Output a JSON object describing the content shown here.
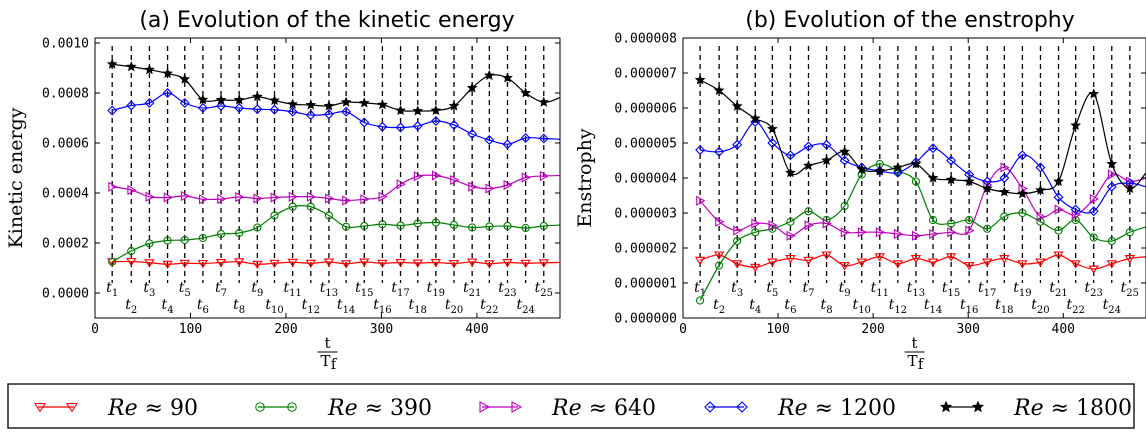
{
  "chart_data": [
    {
      "type": "line",
      "title": "(a) Evolution of the kinetic energy",
      "ylabel": "Kinetic energy",
      "xlabel": {
        "num": "t",
        "den": "T",
        "den_sub": "f"
      },
      "xlim": [
        0,
        487
      ],
      "ylim": [
        -0.0001,
        0.00102
      ],
      "xticks": [
        0,
        100,
        200,
        300,
        400
      ],
      "xtick_labels": [
        "0",
        "100",
        "200",
        "300",
        "400"
      ],
      "yticks": [
        0.0,
        0.0002,
        0.0004,
        0.0006,
        0.0008,
        0.001
      ],
      "ytick_labels": [
        "0.0000",
        "0.0002",
        "0.0004",
        "0.0006",
        "0.0008",
        "0.0010"
      ],
      "grid": false,
      "t_markers": [
        {
          "base": "t",
          "sub": "1",
          "x": 18
        },
        {
          "base": "t",
          "sub": "2",
          "x": 38
        },
        {
          "base": "t",
          "sub": "3",
          "x": 57
        },
        {
          "base": "t",
          "sub": "4",
          "x": 76
        },
        {
          "base": "t",
          "sub": "5",
          "x": 94
        },
        {
          "base": "t",
          "sub": "6",
          "x": 113
        },
        {
          "base": "t",
          "sub": "7",
          "x": 132
        },
        {
          "base": "t",
          "sub": "8",
          "x": 151
        },
        {
          "base": "t",
          "sub": "9",
          "x": 170
        },
        {
          "base": "t",
          "sub": "10",
          "x": 188
        },
        {
          "base": "t",
          "sub": "11",
          "x": 207
        },
        {
          "base": "t",
          "sub": "12",
          "x": 226
        },
        {
          "base": "t",
          "sub": "13",
          "x": 245
        },
        {
          "base": "t",
          "sub": "14",
          "x": 263
        },
        {
          "base": "t",
          "sub": "15",
          "x": 282
        },
        {
          "base": "t",
          "sub": "16",
          "x": 301
        },
        {
          "base": "t",
          "sub": "17",
          "x": 320
        },
        {
          "base": "t",
          "sub": "18",
          "x": 338
        },
        {
          "base": "t",
          "sub": "19",
          "x": 357
        },
        {
          "base": "t",
          "sub": "20",
          "x": 376
        },
        {
          "base": "t",
          "sub": "21",
          "x": 395
        },
        {
          "base": "t",
          "sub": "22",
          "x": 413
        },
        {
          "base": "t",
          "sub": "23",
          "x": 432
        },
        {
          "base": "t",
          "sub": "24",
          "x": 451
        },
        {
          "base": "t",
          "sub": "25",
          "x": 470
        }
      ],
      "x": [
        18,
        38,
        57,
        76,
        94,
        113,
        132,
        151,
        170,
        188,
        207,
        226,
        245,
        263,
        282,
        301,
        320,
        338,
        357,
        376,
        395,
        413,
        432,
        451,
        470,
        487
      ],
      "series": [
        {
          "name": "Re ≈ 90",
          "color": "#ff0000",
          "marker": "triangle-down",
          "values": [
            0.000125,
            0.000126,
            0.000121,
            0.000115,
            0.000119,
            0.000118,
            0.000122,
            0.000125,
            0.000115,
            0.000119,
            0.000123,
            0.000119,
            0.000124,
            0.000117,
            0.000124,
            0.000119,
            0.000122,
            0.00012,
            0.000122,
            0.000118,
            0.000124,
            0.000117,
            0.000122,
            0.000119,
            0.000121,
            0.000122
          ]
        },
        {
          "name": "Re ≈ 390",
          "color": "#008000",
          "marker": "circle",
          "values": [
            0.000125,
            0.000168,
            0.000198,
            0.00021,
            0.000212,
            0.00022,
            0.000236,
            0.00024,
            0.000262,
            0.00031,
            0.000345,
            0.000345,
            0.00031,
            0.000265,
            0.000268,
            0.000275,
            0.00027,
            0.000278,
            0.000282,
            0.000272,
            0.000262,
            0.000266,
            0.000268,
            0.00026,
            0.000268,
            0.000272
          ]
        },
        {
          "name": "Re ≈ 640",
          "color": "#bf00bf",
          "marker": "triangle-right",
          "values": [
            0.000425,
            0.000412,
            0.000385,
            0.000382,
            0.000388,
            0.000375,
            0.000376,
            0.000384,
            0.000378,
            0.000382,
            0.000385,
            0.000385,
            0.000378,
            0.00037,
            0.000375,
            0.000385,
            0.000435,
            0.000467,
            0.00047,
            0.000452,
            0.000425,
            0.000418,
            0.000432,
            0.000462,
            0.000468,
            0.00047
          ]
        },
        {
          "name": "Re ≈ 1200",
          "color": "#0000ff",
          "marker": "diamond",
          "values": [
            0.00073,
            0.00075,
            0.00076,
            0.0008,
            0.00076,
            0.00074,
            0.000748,
            0.00074,
            0.000735,
            0.000733,
            0.000725,
            0.000712,
            0.000715,
            0.000725,
            0.000682,
            0.000665,
            0.000662,
            0.000668,
            0.000688,
            0.000672,
            0.000636,
            0.000612,
            0.000595,
            0.00062,
            0.000618,
            0.000615
          ]
        },
        {
          "name": "Re ≈ 1800",
          "color": "#000000",
          "marker": "star",
          "values": [
            0.000915,
            0.000905,
            0.000893,
            0.000878,
            0.000855,
            0.000773,
            0.000772,
            0.000772,
            0.000785,
            0.00077,
            0.000755,
            0.000752,
            0.000748,
            0.000763,
            0.00076,
            0.000753,
            0.00073,
            0.000728,
            0.00073,
            0.000748,
            0.00082,
            0.00087,
            0.00086,
            0.0008,
            0.000763,
            0.000782
          ]
        }
      ]
    },
    {
      "type": "line",
      "title": "(b) Evolution of the enstrophy",
      "ylabel": "Enstrophy",
      "xlabel": {
        "num": "t",
        "den": "T",
        "den_sub": "f"
      },
      "xlim": [
        0,
        487
      ],
      "ylim": [
        0,
        8e-06
      ],
      "xticks": [
        0,
        100,
        200,
        300,
        400
      ],
      "xtick_labels": [
        "0",
        "100",
        "200",
        "300",
        "400"
      ],
      "yticks": [
        0.0,
        1e-06,
        2e-06,
        3e-06,
        4e-06,
        5e-06,
        6e-06,
        7e-06,
        8e-06
      ],
      "ytick_labels": [
        "0.000000",
        "0.000001",
        "0.000002",
        "0.000003",
        "0.000004",
        "0.000005",
        "0.000006",
        "0.000007",
        "0.000008"
      ],
      "grid": false,
      "t_markers": [
        {
          "base": "t",
          "sub": "1",
          "x": 18
        },
        {
          "base": "t",
          "sub": "2",
          "x": 38
        },
        {
          "base": "t",
          "sub": "3",
          "x": 57
        },
        {
          "base": "t",
          "sub": "4",
          "x": 76
        },
        {
          "base": "t",
          "sub": "5",
          "x": 94
        },
        {
          "base": "t",
          "sub": "6",
          "x": 113
        },
        {
          "base": "t",
          "sub": "7",
          "x": 132
        },
        {
          "base": "t",
          "sub": "8",
          "x": 151
        },
        {
          "base": "t",
          "sub": "9",
          "x": 170
        },
        {
          "base": "t",
          "sub": "10",
          "x": 188
        },
        {
          "base": "t",
          "sub": "11",
          "x": 207
        },
        {
          "base": "t",
          "sub": "12",
          "x": 226
        },
        {
          "base": "t",
          "sub": "13",
          "x": 245
        },
        {
          "base": "t",
          "sub": "14",
          "x": 263
        },
        {
          "base": "t",
          "sub": "15",
          "x": 282
        },
        {
          "base": "t",
          "sub": "16",
          "x": 301
        },
        {
          "base": "t",
          "sub": "17",
          "x": 320
        },
        {
          "base": "t",
          "sub": "18",
          "x": 338
        },
        {
          "base": "t",
          "sub": "19",
          "x": 357
        },
        {
          "base": "t",
          "sub": "20",
          "x": 376
        },
        {
          "base": "t",
          "sub": "21",
          "x": 395
        },
        {
          "base": "t",
          "sub": "22",
          "x": 413
        },
        {
          "base": "t",
          "sub": "23",
          "x": 432
        },
        {
          "base": "t",
          "sub": "24",
          "x": 451
        },
        {
          "base": "t",
          "sub": "25",
          "x": 470
        }
      ],
      "x": [
        18,
        38,
        57,
        76,
        94,
        113,
        132,
        151,
        170,
        188,
        207,
        226,
        245,
        263,
        282,
        301,
        320,
        338,
        357,
        376,
        395,
        413,
        432,
        451,
        470,
        487
      ],
      "series": [
        {
          "name": "Re ≈ 90",
          "color": "#ff0000",
          "marker": "triangle-down",
          "values": [
            1.65e-06,
            1.8e-06,
            1.55e-06,
            1.45e-06,
            1.6e-06,
            1.7e-06,
            1.65e-06,
            1.8e-06,
            1.5e-06,
            1.6e-06,
            1.75e-06,
            1.55e-06,
            1.7e-06,
            1.6e-06,
            1.75e-06,
            1.5e-06,
            1.6e-06,
            1.7e-06,
            1.55e-06,
            1.6e-06,
            1.8e-06,
            1.55e-06,
            1.4e-06,
            1.55e-06,
            1.7e-06,
            1.75e-06
          ]
        },
        {
          "name": "Re ≈ 390",
          "color": "#008000",
          "marker": "circle",
          "values": [
            5e-07,
            1.5e-06,
            2.2e-06,
            2.45e-06,
            2.55e-06,
            2.75e-06,
            3.05e-06,
            2.8e-06,
            3.2e-06,
            4.1e-06,
            4.4e-06,
            4.2e-06,
            3.9e-06,
            2.8e-06,
            2.7e-06,
            2.8e-06,
            2.55e-06,
            2.9e-06,
            3e-06,
            2.75e-06,
            2.5e-06,
            2.8e-06,
            2.3e-06,
            2.2e-06,
            2.45e-06,
            2.6e-06
          ]
        },
        {
          "name": "Re ≈ 640",
          "color": "#bf00bf",
          "marker": "triangle-right",
          "values": [
            3.35e-06,
            2.75e-06,
            2.5e-06,
            2.7e-06,
            2.65e-06,
            2.35e-06,
            2.65e-06,
            2.7e-06,
            2.45e-06,
            2.45e-06,
            2.45e-06,
            2.4e-06,
            2.35e-06,
            2.4e-06,
            2.45e-06,
            2.5e-06,
            3.8e-06,
            4.3e-06,
            3.7e-06,
            2.9e-06,
            3.1e-06,
            2.95e-06,
            3.4e-06,
            4.1e-06,
            3.9e-06,
            4e-06
          ]
        },
        {
          "name": "Re ≈ 1200",
          "color": "#0000ff",
          "marker": "diamond",
          "values": [
            4.8e-06,
            4.75e-06,
            4.95e-06,
            5.6e-06,
            5e-06,
            4.65e-06,
            4.9e-06,
            4.95e-06,
            4.5e-06,
            4.3e-06,
            4.2e-06,
            4.15e-06,
            4.45e-06,
            4.85e-06,
            4.5e-06,
            4.1e-06,
            3.9e-06,
            4e-06,
            4.65e-06,
            4.3e-06,
            3.45e-06,
            3.1e-06,
            3.05e-06,
            3.75e-06,
            3.85e-06,
            3.75e-06
          ]
        },
        {
          "name": "Re ≈ 1800",
          "color": "#000000",
          "marker": "star",
          "values": [
            6.8e-06,
            6.5e-06,
            6.05e-06,
            5.7e-06,
            5.4e-06,
            4.15e-06,
            4.35e-06,
            4.5e-06,
            4.75e-06,
            4.25e-06,
            4.2e-06,
            4.3e-06,
            4.4e-06,
            4e-06,
            3.95e-06,
            3.9e-06,
            3.7e-06,
            3.6e-06,
            3.55e-06,
            3.65e-06,
            3.9e-06,
            5.5e-06,
            6.4e-06,
            4.4e-06,
            3.7e-06,
            4.15e-06
          ]
        }
      ]
    }
  ],
  "legend": {
    "placement": "bottom",
    "entries": [
      {
        "prefix": "Re",
        "suffix": " ≈ 90"
      },
      {
        "prefix": "Re",
        "suffix": " ≈ 390"
      },
      {
        "prefix": "Re",
        "suffix": " ≈ 640"
      },
      {
        "prefix": "Re",
        "suffix": " ≈ 1200"
      },
      {
        "prefix": "Re",
        "suffix": " ≈ 1800"
      }
    ]
  }
}
